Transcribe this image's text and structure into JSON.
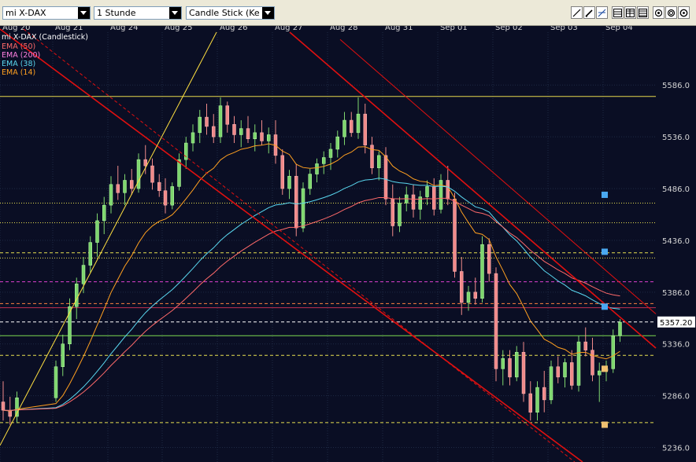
{
  "toolbar": {
    "instrument": "mi X-DAX",
    "interval": "1 Stunde",
    "chart_type": "Candle Stick (Kerze",
    "tools": [
      "line-tool-icon",
      "pen-tool-icon",
      "fib-tool-icon",
      "grid-1-icon",
      "grid-2-icon",
      "grid-3-icon",
      "zoom-in-icon",
      "zoom-out-icon",
      "settings-icon"
    ]
  },
  "colors": {
    "background": "#0a0e24",
    "grid": "#1e2a44",
    "ema50": "#ff6a6a",
    "ema200": "#ff80e0",
    "ema38": "#5ad8f0",
    "ema14": "#ffa020",
    "channel": "#e01010",
    "trendline_yellow": "#ffe040"
  },
  "chart_data": {
    "type": "candlestick",
    "title": "mi X-DAX (Candlestick)",
    "x_labels": [
      "Aug 20",
      "Aug 21",
      "Aug 24",
      "Aug 25",
      "Aug 26",
      "Aug 27",
      "Aug 28",
      "Aug 31",
      "Sep 01",
      "Sep 02",
      "Sep 03",
      "Sep 04"
    ],
    "y_ticks": [
      "5586.0",
      "5536.0",
      "5486.0",
      "5436.0",
      "5386.0",
      "5336.0",
      "5286.0",
      "5236.0"
    ],
    "ylim": [
      5222,
      5637
    ],
    "current_price": "5357.20",
    "legend": [
      {
        "label": "EMA (50)",
        "color": "#ff6a6a"
      },
      {
        "label": "EMA (200)",
        "color": "#ff80e0"
      },
      {
        "label": "EMA (38)",
        "color": "#5ad8f0"
      },
      {
        "label": "EMA (14)",
        "color": "#ffa020"
      }
    ],
    "candles_by_day": [
      {
        "day": "Aug 20",
        "ohlc": [
          [
            5280,
            5300,
            5262,
            5272
          ],
          [
            5272,
            5285,
            5258,
            5266
          ],
          [
            5266,
            5290,
            5260,
            5284
          ]
        ]
      },
      {
        "day": "Aug 21",
        "ohlc": [
          [
            5284,
            5320,
            5280,
            5314
          ],
          [
            5314,
            5345,
            5305,
            5336
          ],
          [
            5336,
            5380,
            5330,
            5372
          ],
          [
            5372,
            5400,
            5360,
            5394
          ],
          [
            5394,
            5420,
            5385,
            5412
          ],
          [
            5412,
            5440,
            5405,
            5434
          ],
          [
            5434,
            5462,
            5420,
            5455
          ],
          [
            5455,
            5478,
            5442,
            5470
          ]
        ]
      },
      {
        "day": "Aug 24",
        "ohlc": [
          [
            5470,
            5498,
            5462,
            5490
          ],
          [
            5490,
            5508,
            5475,
            5482
          ],
          [
            5482,
            5500,
            5470,
            5494
          ],
          [
            5494,
            5505,
            5480,
            5486
          ],
          [
            5486,
            5520,
            5482,
            5514
          ],
          [
            5514,
            5528,
            5500,
            5508
          ],
          [
            5508,
            5515,
            5485,
            5492
          ],
          [
            5492,
            5500,
            5478,
            5484
          ]
        ]
      },
      {
        "day": "Aug 25",
        "ohlc": [
          [
            5484,
            5496,
            5462,
            5470
          ],
          [
            5470,
            5492,
            5466,
            5488
          ],
          [
            5488,
            5520,
            5484,
            5514
          ],
          [
            5514,
            5536,
            5505,
            5530
          ],
          [
            5530,
            5548,
            5522,
            5540
          ],
          [
            5540,
            5562,
            5530,
            5555
          ],
          [
            5555,
            5568,
            5538,
            5546
          ],
          [
            5546,
            5558,
            5530,
            5536
          ]
        ]
      },
      {
        "day": "Aug 26",
        "ohlc": [
          [
            5536,
            5574,
            5530,
            5566
          ],
          [
            5566,
            5570,
            5540,
            5548
          ],
          [
            5548,
            5556,
            5530,
            5538
          ],
          [
            5538,
            5552,
            5526,
            5544
          ],
          [
            5544,
            5556,
            5530,
            5534
          ],
          [
            5534,
            5548,
            5522,
            5540
          ],
          [
            5540,
            5552,
            5528,
            5532
          ],
          [
            5532,
            5545,
            5520,
            5538
          ]
        ]
      },
      {
        "day": "Aug 27",
        "ohlc": [
          [
            5538,
            5552,
            5510,
            5518
          ],
          [
            5518,
            5524,
            5480,
            5486
          ],
          [
            5486,
            5504,
            5476,
            5498
          ],
          [
            5498,
            5510,
            5440,
            5448
          ],
          [
            5448,
            5492,
            5444,
            5486
          ],
          [
            5486,
            5505,
            5480,
            5500
          ],
          [
            5500,
            5515,
            5492,
            5510
          ],
          [
            5510,
            5522,
            5500,
            5516
          ]
        ]
      },
      {
        "day": "Aug 28",
        "ohlc": [
          [
            5516,
            5530,
            5504,
            5524
          ],
          [
            5524,
            5542,
            5516,
            5536
          ],
          [
            5536,
            5560,
            5528,
            5552
          ],
          [
            5552,
            5560,
            5536,
            5540
          ],
          [
            5540,
            5574,
            5534,
            5558
          ],
          [
            5558,
            5568,
            5520,
            5528
          ],
          [
            5528,
            5536,
            5500,
            5506
          ],
          [
            5506,
            5522,
            5494,
            5518
          ]
        ]
      },
      {
        "day": "Aug 31",
        "ohlc": [
          [
            5518,
            5526,
            5470,
            5476
          ],
          [
            5476,
            5490,
            5440,
            5450
          ],
          [
            5450,
            5478,
            5444,
            5472
          ],
          [
            5472,
            5488,
            5464,
            5480
          ],
          [
            5480,
            5490,
            5458,
            5466
          ],
          [
            5466,
            5484,
            5456,
            5478
          ],
          [
            5478,
            5494,
            5470,
            5488
          ],
          [
            5488,
            5496,
            5460,
            5466
          ]
        ]
      },
      {
        "day": "Sep 01",
        "ohlc": [
          [
            5466,
            5500,
            5462,
            5494
          ],
          [
            5494,
            5508,
            5470,
            5476
          ],
          [
            5476,
            5482,
            5400,
            5406
          ],
          [
            5406,
            5420,
            5364,
            5376
          ],
          [
            5376,
            5392,
            5368,
            5386
          ],
          [
            5386,
            5400,
            5374,
            5380
          ],
          [
            5380,
            5440,
            5376,
            5432
          ],
          [
            5432,
            5438,
            5396,
            5404
          ]
        ]
      },
      {
        "day": "Sep 02",
        "ohlc": [
          [
            5404,
            5410,
            5300,
            5312
          ],
          [
            5312,
            5330,
            5296,
            5322
          ],
          [
            5322,
            5330,
            5296,
            5304
          ],
          [
            5304,
            5334,
            5300,
            5328
          ],
          [
            5328,
            5338,
            5280,
            5288
          ],
          [
            5288,
            5300,
            5262,
            5270
          ],
          [
            5270,
            5300,
            5262,
            5294
          ],
          [
            5294,
            5310,
            5270,
            5282
          ]
        ]
      },
      {
        "day": "Sep 03",
        "ohlc": [
          [
            5282,
            5320,
            5278,
            5314
          ],
          [
            5314,
            5324,
            5298,
            5304
          ],
          [
            5304,
            5322,
            5294,
            5318
          ],
          [
            5318,
            5330,
            5292,
            5296
          ],
          [
            5296,
            5344,
            5290,
            5338
          ],
          [
            5338,
            5352,
            5324,
            5330
          ],
          [
            5330,
            5342,
            5300,
            5306
          ],
          [
            5306,
            5318,
            5280,
            5310
          ]
        ]
      },
      {
        "day": "Sep 04",
        "ohlc": [
          [
            5310,
            5320,
            5300,
            5312
          ],
          [
            5312,
            5350,
            5308,
            5344
          ],
          [
            5344,
            5360,
            5338,
            5357
          ]
        ]
      }
    ],
    "horizontal_levels": [
      {
        "price": 5575,
        "color": "#e6d84c",
        "style": "solid"
      },
      {
        "price": 5472,
        "color": "#e8e050",
        "style": "dotted"
      },
      {
        "price": 5453,
        "color": "#e8e050",
        "style": "dotted"
      },
      {
        "price": 5424,
        "color": "#e8e050",
        "style": "dashed"
      },
      {
        "price": 5419,
        "color": "#e8e050",
        "style": "dotted"
      },
      {
        "price": 5396,
        "color": "#e040d0",
        "style": "dashed"
      },
      {
        "price": 5375,
        "color": "#ff8040",
        "style": "dashed"
      },
      {
        "price": 5371,
        "color": "#c03050",
        "style": "solid"
      },
      {
        "price": 5357.2,
        "color": "#ffffff",
        "style": "dashed"
      },
      {
        "price": 5344,
        "color": "#7cd850",
        "style": "solid"
      },
      {
        "price": 5325,
        "color": "#e8e050",
        "style": "dashed"
      },
      {
        "price": 5260,
        "color": "#e8e050",
        "style": "dashed"
      }
    ],
    "markers": [
      {
        "price": 5480,
        "color": "#4aa8f0"
      },
      {
        "price": 5425,
        "color": "#4aa8f0"
      },
      {
        "price": 5372,
        "color": "#4aa8f0"
      },
      {
        "price": 5312,
        "color": "#f0c070"
      },
      {
        "price": 5258,
        "color": "#f0c070"
      }
    ]
  }
}
